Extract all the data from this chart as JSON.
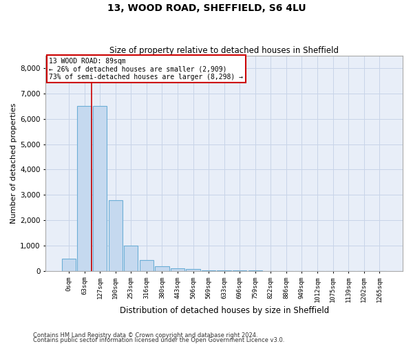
{
  "title1": "13, WOOD ROAD, SHEFFIELD, S6 4LU",
  "title2": "Size of property relative to detached houses in Sheffield",
  "xlabel": "Distribution of detached houses by size in Sheffield",
  "ylabel": "Number of detached properties",
  "categories": [
    "0sqm",
    "63sqm",
    "127sqm",
    "190sqm",
    "253sqm",
    "316sqm",
    "380sqm",
    "443sqm",
    "506sqm",
    "569sqm",
    "633sqm",
    "696sqm",
    "759sqm",
    "822sqm",
    "886sqm",
    "949sqm",
    "1012sqm",
    "1075sqm",
    "1139sqm",
    "1202sqm",
    "1265sqm"
  ],
  "values": [
    490,
    6500,
    6500,
    2800,
    1000,
    420,
    180,
    100,
    60,
    10,
    5,
    5,
    5,
    0,
    0,
    0,
    0,
    0,
    0,
    0,
    0
  ],
  "bar_color": "#c5d9ef",
  "bar_edge_color": "#6baed6",
  "vline_x": 1.46,
  "vline_color": "#cc0000",
  "annotation_title": "13 WOOD ROAD: 89sqm",
  "annotation_line2": "← 26% of detached houses are smaller (2,909)",
  "annotation_line3": "73% of semi-detached houses are larger (8,298) →",
  "annotation_box_color": "#cc0000",
  "annotation_bg": "#ffffff",
  "ylim": [
    0,
    8500
  ],
  "yticks": [
    0,
    1000,
    2000,
    3000,
    4000,
    5000,
    6000,
    7000,
    8000
  ],
  "grid_color": "#c8d4e8",
  "bg_color": "#e8eef8",
  "footer1": "Contains HM Land Registry data © Crown copyright and database right 2024.",
  "footer2": "Contains public sector information licensed under the Open Government Licence v3.0."
}
